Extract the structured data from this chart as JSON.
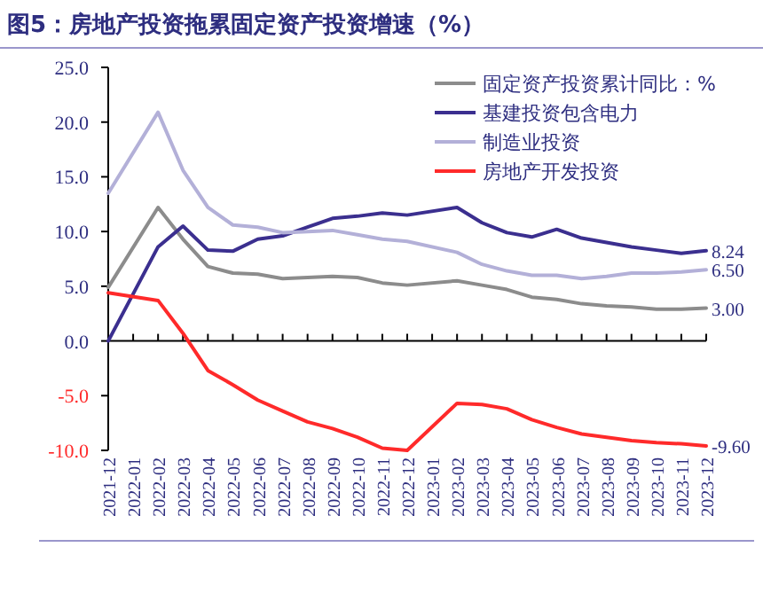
{
  "chart_data": {
    "type": "line",
    "title": "图5：房地产投资拖累固定资产投资增速（%）",
    "categories": [
      "2021-12",
      "2022-01",
      "2022-02",
      "2022-03",
      "2022-04",
      "2022-05",
      "2022-06",
      "2022-07",
      "2022-08",
      "2022-09",
      "2022-10",
      "2022-11",
      "2022-12",
      "2023-01",
      "2023-02",
      "2023-03",
      "2023-04",
      "2023-05",
      "2023-06",
      "2023-07",
      "2023-08",
      "2023-09",
      "2023-10",
      "2023-11",
      "2023-12"
    ],
    "series": [
      {
        "name": "固定资产投资累计同比：%",
        "color": "#8c8c8c",
        "values": [
          4.9,
          null,
          12.2,
          9.3,
          6.8,
          6.2,
          6.1,
          5.7,
          5.8,
          5.9,
          5.8,
          5.3,
          5.1,
          null,
          5.5,
          5.1,
          4.7,
          4.0,
          3.8,
          3.4,
          3.2,
          3.1,
          2.9,
          2.9,
          3.0
        ],
        "value_labels": [
          null,
          null,
          null,
          null,
          null,
          null,
          null,
          null,
          null,
          null,
          null,
          null,
          null,
          null,
          null,
          null,
          null,
          null,
          null,
          null,
          null,
          null,
          null,
          null,
          "3.00"
        ]
      },
      {
        "name": "基建投资包含电力",
        "color": "#3b2f8f",
        "values": [
          0.0,
          null,
          8.6,
          10.5,
          8.3,
          8.2,
          9.3,
          9.6,
          10.4,
          11.2,
          11.4,
          11.7,
          11.5,
          null,
          12.2,
          10.8,
          9.9,
          9.5,
          10.2,
          9.4,
          9.0,
          8.6,
          8.3,
          8.0,
          8.24
        ],
        "value_labels": [
          null,
          null,
          null,
          null,
          null,
          null,
          null,
          null,
          null,
          null,
          null,
          null,
          null,
          null,
          null,
          null,
          null,
          null,
          null,
          null,
          null,
          null,
          null,
          null,
          "8.24"
        ]
      },
      {
        "name": "制造业投资",
        "color": "#b3b0d8",
        "values": [
          13.5,
          null,
          20.9,
          15.6,
          12.2,
          10.6,
          10.4,
          9.9,
          10.0,
          10.1,
          9.7,
          9.3,
          9.1,
          null,
          8.1,
          7.0,
          6.4,
          6.0,
          6.0,
          5.7,
          5.9,
          6.2,
          6.2,
          6.3,
          6.5
        ],
        "value_labels": [
          null,
          null,
          null,
          null,
          null,
          null,
          null,
          null,
          null,
          null,
          null,
          null,
          null,
          null,
          null,
          null,
          null,
          null,
          null,
          null,
          null,
          null,
          null,
          null,
          "6.50"
        ]
      },
      {
        "name": "房地产开发投资",
        "color": "#ff2a2a",
        "values": [
          4.4,
          null,
          3.7,
          0.7,
          -2.7,
          -4.0,
          -5.4,
          -6.4,
          -7.4,
          -8.0,
          -8.8,
          -9.8,
          -10.0,
          null,
          -5.7,
          -5.8,
          -6.2,
          -7.2,
          -7.9,
          -8.5,
          -8.8,
          -9.1,
          -9.3,
          -9.4,
          -9.6
        ],
        "value_labels": [
          null,
          null,
          null,
          null,
          null,
          null,
          null,
          null,
          null,
          null,
          null,
          null,
          null,
          null,
          null,
          null,
          null,
          null,
          null,
          null,
          null,
          null,
          null,
          null,
          "-9.60"
        ]
      }
    ],
    "ylim": [
      -10,
      25
    ],
    "yticks": [
      {
        "value": 25,
        "label": "25.0"
      },
      {
        "value": 20,
        "label": "20.0"
      },
      {
        "value": 15,
        "label": "15.0"
      },
      {
        "value": 10,
        "label": "10.0"
      },
      {
        "value": 5,
        "label": "5.0"
      },
      {
        "value": 0,
        "label": "0.0"
      },
      {
        "value": -5,
        "label": "-5.0"
      },
      {
        "value": -10,
        "label": "-10.0"
      }
    ],
    "legend": "top right",
    "marker": "none",
    "line_style": "solid"
  }
}
